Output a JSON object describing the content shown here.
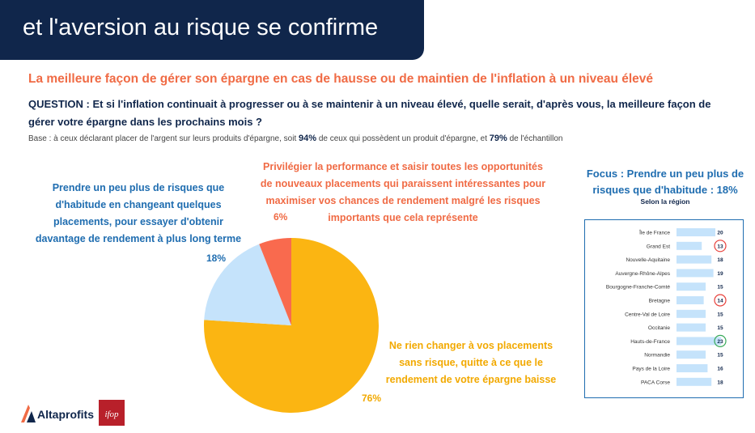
{
  "header": {
    "title": "et l'aversion au risque se confirme"
  },
  "subtitle": "La meilleure façon de gérer son épargne en cas de hausse ou de maintien de l'inflation à un niveau élevé",
  "question": "QUESTION : Et si l'inflation continuait à progresser ou à se maintenir à un niveau élevé, quelle serait, d'après vous, la meilleure façon de gérer votre épargne dans les prochains mois ?",
  "base": {
    "prefix": "Base : à ceux déclarant placer de l'argent sur leurs produits d'épargne, soit",
    "pct1": "94%",
    "middle": "de ceux qui possèdent un produit d'épargne, et",
    "pct2": "79%",
    "suffix": "de l'échantillon"
  },
  "colors": {
    "navy": "#10264b",
    "orange": "#f06b45",
    "blue": "#1f6db0",
    "light_blue": "#c5e3fb",
    "yellow": "#fbb512",
    "red": "#e8403b",
    "green": "#3aaa5a"
  },
  "chart_data": [
    {
      "type": "pie",
      "title": "",
      "slices": [
        {
          "label": "Ne rien changer à vos placements sans risque, quitte à ce que le rendement de votre épargne baisse",
          "value": 76,
          "value_label": "76%",
          "color": "#fbb512"
        },
        {
          "label": "Prendre un peu plus de risques que d'habitude en changeant quelques placements, pour essayer d'obtenir davantage de rendement à plus long terme",
          "value": 18,
          "value_label": "18%",
          "color": "#c5e3fb"
        },
        {
          "label": "Privilégier la performance et saisir toutes les opportunités de nouveaux placements qui paraissent intéressantes pour maximiser vos chances de rendement malgré les risques importants que cela représente",
          "value": 6,
          "value_label": "6%",
          "color": "#f96a4e"
        }
      ]
    },
    {
      "type": "bar",
      "orientation": "horizontal",
      "title": "Focus : Prendre un peu plus de risques que d'habitude : 18%",
      "subtitle": "Selon la région",
      "xlim": [
        0,
        25
      ],
      "categories": [
        "Île de France",
        "Grand Est",
        "Nouvelle-Aquitaine",
        "Auvergne-Rhône-Alpes",
        "Bourgogne-Franche-Comté",
        "Bretagne",
        "Centre-Val de Loire",
        "Occitanie",
        "Hauts-de-France",
        "Normandie",
        "Pays de la Loire",
        "PACA Corse"
      ],
      "values": [
        20,
        13,
        18,
        19,
        15,
        14,
        15,
        15,
        23,
        15,
        16,
        18
      ],
      "highlight": {
        "Grand Est": "red",
        "Bretagne": "red",
        "Hauts-de-France": "green"
      }
    }
  ],
  "labels": {
    "risk_more": "Prendre un peu plus de risques que d'habitude en changeant quelques placements, pour essayer d'obtenir davantage de rendement à plus long terme",
    "risk_more_pct": "18%",
    "perf": "Privilégier la performance et saisir toutes les opportunités de nouveaux placements qui paraissent intéressantes pour maximiser vos chances de rendement malgré les risques importants que cela représente",
    "perf_pct": "6%",
    "nochange": "Ne rien changer à vos placements sans risque, quitte à ce que le rendement de votre épargne baisse",
    "nochange_pct": "76%"
  },
  "logos": {
    "altaprofits": "Altaprofits",
    "ifop": "ifop"
  }
}
